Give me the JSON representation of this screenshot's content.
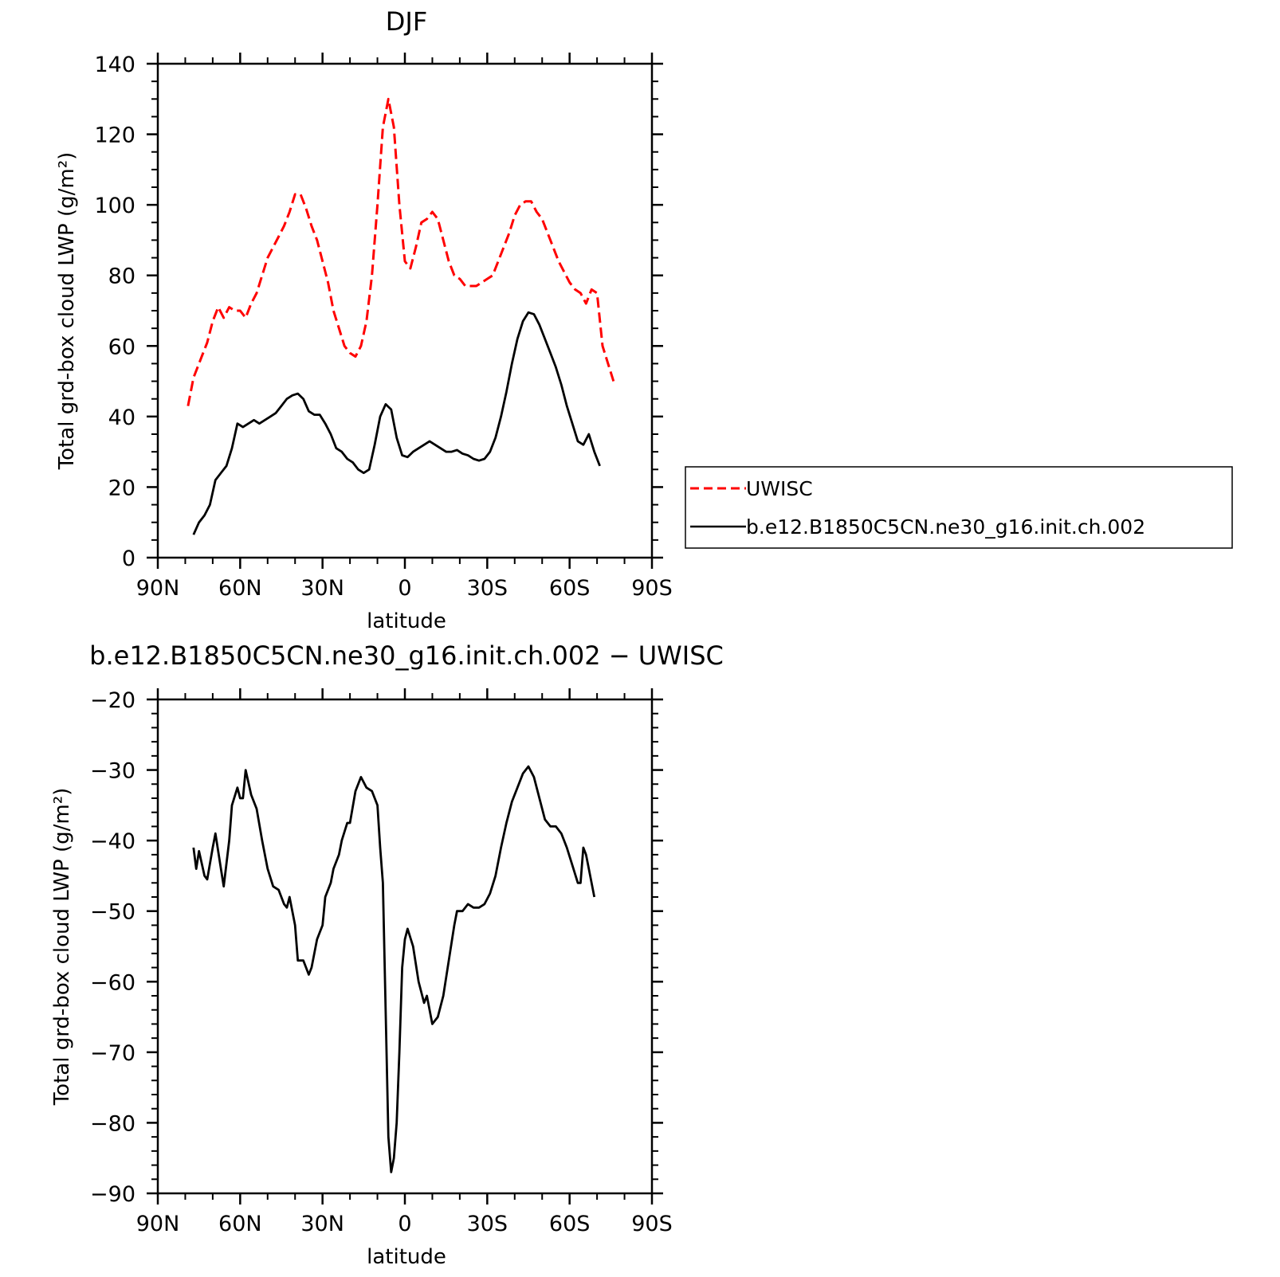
{
  "chart_data": [
    {
      "type": "line",
      "title": "DJF",
      "xlabel": "latitude",
      "ylabel": "Total grd-box cloud LWP (g/m²)",
      "xlim": [
        90,
        -90
      ],
      "ylim": [
        0,
        140
      ],
      "xticks": [
        90,
        60,
        30,
        0,
        -30,
        -60,
        -90
      ],
      "xticklabels": [
        "90N",
        "60N",
        "30N",
        "0",
        "30S",
        "60S",
        "90S"
      ],
      "yticks": [
        0,
        20,
        40,
        60,
        80,
        100,
        120,
        140
      ],
      "yticklabels": [
        "0",
        "20",
        "40",
        "60",
        "80",
        "100",
        "120",
        "140"
      ],
      "legend": {
        "placement": "right",
        "entries": [
          "UWISC",
          "b.e12.B1850C5CN.ne30_g16.init.ch.002"
        ]
      },
      "series": [
        {
          "name": "UWISC",
          "color": "#ff0000",
          "dash": "dashed",
          "points": [
            [
              79,
              43
            ],
            [
              77,
              51
            ],
            [
              74,
              57
            ],
            [
              72,
              61
            ],
            [
              70,
              67
            ],
            [
              68,
              71
            ],
            [
              66,
              68
            ],
            [
              64,
              71
            ],
            [
              62,
              70
            ],
            [
              60,
              70
            ],
            [
              58,
              68
            ],
            [
              56,
              72
            ],
            [
              54,
              75
            ],
            [
              52,
              80
            ],
            [
              50,
              85
            ],
            [
              48,
              88
            ],
            [
              46,
              91
            ],
            [
              44,
              94
            ],
            [
              42,
              98
            ],
            [
              40,
              103
            ],
            [
              38,
              103
            ],
            [
              36,
              99
            ],
            [
              34,
              94
            ],
            [
              32,
              90
            ],
            [
              30,
              84
            ],
            [
              28,
              78
            ],
            [
              26,
              70
            ],
            [
              24,
              65
            ],
            [
              22,
              60
            ],
            [
              20,
              58
            ],
            [
              18,
              57
            ],
            [
              16,
              60
            ],
            [
              14,
              67
            ],
            [
              12,
              80
            ],
            [
              10,
              100
            ],
            [
              8,
              122
            ],
            [
              6,
              130
            ],
            [
              4,
              122
            ],
            [
              2,
              100
            ],
            [
              0,
              84
            ],
            [
              -2,
              82
            ],
            [
              -4,
              88
            ],
            [
              -6,
              95
            ],
            [
              -8,
              96
            ],
            [
              -10,
              98
            ],
            [
              -12,
              96
            ],
            [
              -14,
              90
            ],
            [
              -16,
              84
            ],
            [
              -18,
              80
            ],
            [
              -20,
              79
            ],
            [
              -22,
              77
            ],
            [
              -24,
              77
            ],
            [
              -26,
              77
            ],
            [
              -28,
              78
            ],
            [
              -30,
              79
            ],
            [
              -32,
              80
            ],
            [
              -34,
              84
            ],
            [
              -36,
              88
            ],
            [
              -38,
              92
            ],
            [
              -40,
              97
            ],
            [
              -42,
              100
            ],
            [
              -44,
              101
            ],
            [
              -46,
              101
            ],
            [
              -48,
              98
            ],
            [
              -50,
              96
            ],
            [
              -52,
              92
            ],
            [
              -54,
              88
            ],
            [
              -56,
              84
            ],
            [
              -58,
              81
            ],
            [
              -60,
              78
            ],
            [
              -62,
              76
            ],
            [
              -64,
              75
            ],
            [
              -66,
              72
            ],
            [
              -68,
              76
            ],
            [
              -70,
              75
            ],
            [
              -72,
              60
            ],
            [
              -74,
              55
            ],
            [
              -76,
              50
            ]
          ]
        },
        {
          "name": "b.e12.B1850C5CN.ne30_g16.init.ch.002",
          "color": "#000000",
          "dash": "solid",
          "points": [
            [
              77,
              6.5
            ],
            [
              75,
              10
            ],
            [
              73,
              12
            ],
            [
              71,
              15
            ],
            [
              69,
              22
            ],
            [
              67,
              24
            ],
            [
              65,
              26
            ],
            [
              63,
              31
            ],
            [
              61,
              38
            ],
            [
              59,
              37
            ],
            [
              57,
              38
            ],
            [
              55,
              39
            ],
            [
              53,
              38
            ],
            [
              51,
              39
            ],
            [
              49,
              40
            ],
            [
              47,
              41
            ],
            [
              45,
              43
            ],
            [
              43,
              45
            ],
            [
              41,
              46
            ],
            [
              39,
              46.5
            ],
            [
              37,
              45
            ],
            [
              35,
              41.5
            ],
            [
              33,
              40.5
            ],
            [
              31,
              40.5
            ],
            [
              29,
              38
            ],
            [
              27,
              35
            ],
            [
              25,
              31
            ],
            [
              23,
              30
            ],
            [
              21,
              28
            ],
            [
              19,
              27
            ],
            [
              17,
              25
            ],
            [
              15,
              24
            ],
            [
              13,
              25
            ],
            [
              11,
              32
            ],
            [
              9,
              40
            ],
            [
              7,
              43.5
            ],
            [
              5,
              42
            ],
            [
              3,
              34
            ],
            [
              1,
              29
            ],
            [
              -1,
              28.5
            ],
            [
              -3,
              30
            ],
            [
              -5,
              31
            ],
            [
              -7,
              32
            ],
            [
              -9,
              33
            ],
            [
              -11,
              32
            ],
            [
              -13,
              31
            ],
            [
              -15,
              30
            ],
            [
              -17,
              30
            ],
            [
              -19,
              30.5
            ],
            [
              -21,
              29.5
            ],
            [
              -23,
              29
            ],
            [
              -25,
              28
            ],
            [
              -27,
              27.5
            ],
            [
              -29,
              28
            ],
            [
              -31,
              30
            ],
            [
              -33,
              34
            ],
            [
              -35,
              40
            ],
            [
              -37,
              47
            ],
            [
              -39,
              55
            ],
            [
              -41,
              62
            ],
            [
              -43,
              67
            ],
            [
              -45,
              69.5
            ],
            [
              -47,
              69
            ],
            [
              -49,
              66
            ],
            [
              -51,
              62
            ],
            [
              -53,
              58
            ],
            [
              -55,
              54
            ],
            [
              -57,
              49
            ],
            [
              -59,
              43
            ],
            [
              -61,
              38
            ],
            [
              -63,
              33
            ],
            [
              -65,
              32
            ],
            [
              -67,
              35
            ],
            [
              -69,
              30
            ],
            [
              -71,
              26
            ]
          ]
        }
      ]
    },
    {
      "type": "line",
      "title": "b.e12.B1850C5CN.ne30_g16.init.ch.002 − UWISC",
      "xlabel": "latitude",
      "ylabel": "Total grd-box cloud LWP (g/m²)",
      "xlim": [
        90,
        -90
      ],
      "ylim": [
        -90,
        -20
      ],
      "xticks": [
        90,
        60,
        30,
        0,
        -30,
        -60,
        -90
      ],
      "xticklabels": [
        "90N",
        "60N",
        "30N",
        "0",
        "30S",
        "60S",
        "90S"
      ],
      "yticks": [
        -20,
        -30,
        -40,
        -50,
        -60,
        -70,
        -80,
        -90
      ],
      "yticklabels": [
        "−20",
        "−30",
        "−40",
        "−50",
        "−60",
        "−70",
        "−80",
        "−90"
      ],
      "series": [
        {
          "color": "#000000",
          "dash": "solid",
          "points": [
            [
              77,
              -41
            ],
            [
              76,
              -44
            ],
            [
              75,
              -41.5
            ],
            [
              73,
              -45
            ],
            [
              72,
              -45.5
            ],
            [
              70,
              -41
            ],
            [
              69,
              -39
            ],
            [
              67,
              -44
            ],
            [
              66,
              -46.5
            ],
            [
              64,
              -40
            ],
            [
              63,
              -35
            ],
            [
              61,
              -32.5
            ],
            [
              60,
              -34
            ],
            [
              59,
              -34
            ],
            [
              58,
              -30
            ],
            [
              56,
              -33.5
            ],
            [
              54,
              -35.5
            ],
            [
              52,
              -40
            ],
            [
              50,
              -44
            ],
            [
              48,
              -46.5
            ],
            [
              46,
              -47
            ],
            [
              44,
              -49
            ],
            [
              43,
              -49.5
            ],
            [
              42,
              -48
            ],
            [
              40,
              -52
            ],
            [
              39,
              -57
            ],
            [
              37,
              -57
            ],
            [
              35,
              -59
            ],
            [
              34,
              -58
            ],
            [
              32,
              -54
            ],
            [
              30,
              -52
            ],
            [
              29,
              -48
            ],
            [
              27,
              -46
            ],
            [
              26,
              -44
            ],
            [
              24,
              -42
            ],
            [
              23,
              -40
            ],
            [
              21,
              -37.5
            ],
            [
              20,
              -37.5
            ],
            [
              18,
              -33
            ],
            [
              16,
              -31
            ],
            [
              14,
              -32.5
            ],
            [
              12,
              -33
            ],
            [
              10,
              -35
            ],
            [
              9,
              -41
            ],
            [
              8,
              -46
            ],
            [
              6,
              -82
            ],
            [
              5,
              -87
            ],
            [
              4,
              -85
            ],
            [
              3,
              -80
            ],
            [
              2,
              -70
            ],
            [
              1,
              -58
            ],
            [
              0,
              -54
            ],
            [
              -1,
              -52.5
            ],
            [
              -3,
              -55
            ],
            [
              -5,
              -60
            ],
            [
              -7,
              -63
            ],
            [
              -8,
              -62
            ],
            [
              -10,
              -66
            ],
            [
              -12,
              -65
            ],
            [
              -14,
              -62
            ],
            [
              -16,
              -57
            ],
            [
              -18,
              -52
            ],
            [
              -19,
              -50
            ],
            [
              -21,
              -50
            ],
            [
              -23,
              -49
            ],
            [
              -25,
              -49.5
            ],
            [
              -27,
              -49.5
            ],
            [
              -29,
              -49
            ],
            [
              -31,
              -47.5
            ],
            [
              -33,
              -45
            ],
            [
              -35,
              -41
            ],
            [
              -37,
              -37.5
            ],
            [
              -39,
              -34.5
            ],
            [
              -41,
              -32.5
            ],
            [
              -43,
              -30.5
            ],
            [
              -45,
              -29.5
            ],
            [
              -47,
              -31
            ],
            [
              -49,
              -34
            ],
            [
              -51,
              -37
            ],
            [
              -53,
              -38
            ],
            [
              -55,
              -38
            ],
            [
              -57,
              -39
            ],
            [
              -59,
              -41
            ],
            [
              -61,
              -43.5
            ],
            [
              -63,
              -46
            ],
            [
              -64,
              -46
            ],
            [
              -65,
              -41
            ],
            [
              -66,
              -42
            ],
            [
              -67,
              -44
            ],
            [
              -69,
              -48
            ]
          ]
        }
      ]
    }
  ]
}
